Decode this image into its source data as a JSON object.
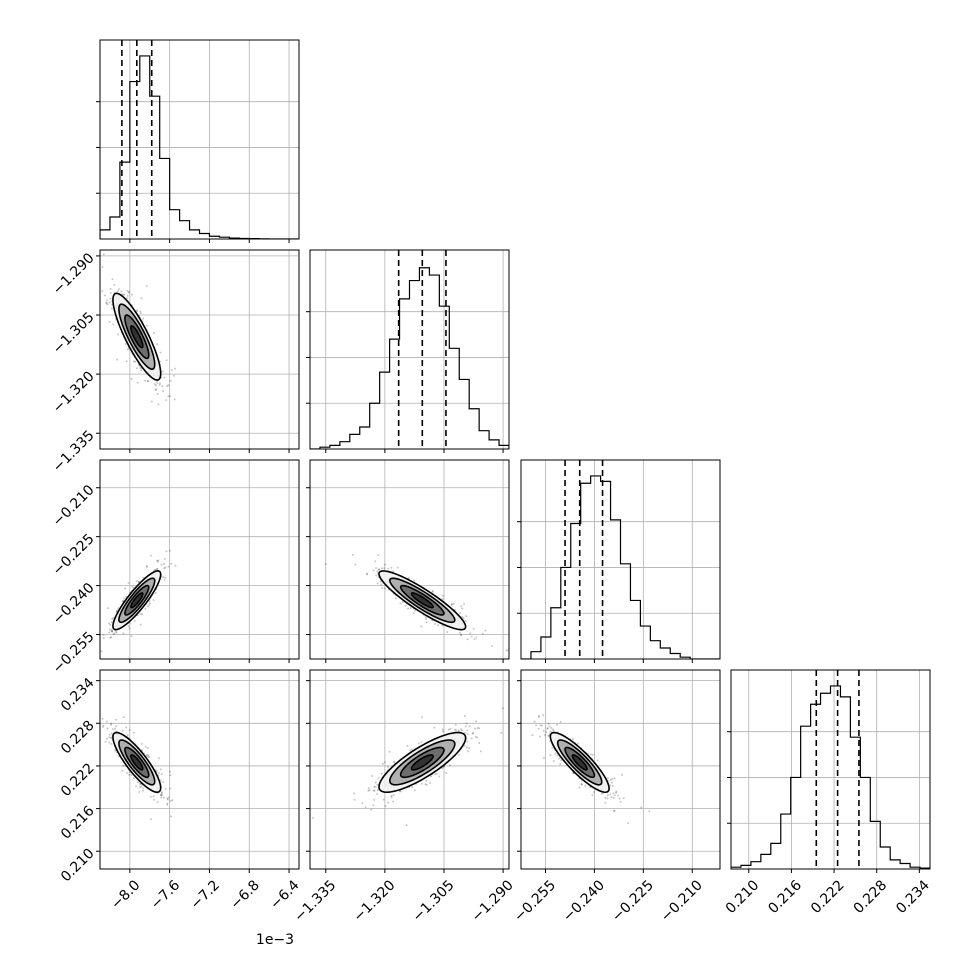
{
  "chart_data": {
    "type": "corner",
    "grid": true,
    "params": [
      {
        "range": [
          -8.3,
          -6.3
        ],
        "ticks": [
          -8.0,
          -7.6,
          -7.2,
          -6.8,
          -6.4
        ],
        "tick_labels": [
          "−8.0",
          "−7.6",
          "−7.2",
          "−6.8",
          "−6.4"
        ],
        "offset_label": "1e−3",
        "mean": -7.93,
        "sigma": 0.12,
        "quantiles": [
          -8.08,
          -7.93,
          -7.78
        ]
      },
      {
        "range": [
          -1.339,
          -1.2885
        ],
        "ticks": [
          -1.335,
          -1.32,
          -1.305,
          -1.29
        ],
        "tick_labels": [
          "−1.335",
          "−1.320",
          "−1.305",
          "−1.290"
        ],
        "offset_label": "",
        "mean": -1.3105,
        "sigma": 0.0055,
        "quantiles": [
          -1.3165,
          -1.3105,
          -1.3045
        ]
      },
      {
        "range": [
          -0.2625,
          -0.2015
        ],
        "ticks": [
          -0.255,
          -0.24,
          -0.225,
          -0.21
        ],
        "tick_labels": [
          "−0.255",
          "−0.240",
          "−0.225",
          "−0.210"
        ],
        "offset_label": "",
        "mean": -0.2445,
        "sigma": 0.0045,
        "quantiles": [
          -0.249,
          -0.2445,
          -0.2375
        ]
      },
      {
        "range": [
          0.2075,
          0.2355
        ],
        "ticks": [
          0.21,
          0.216,
          0.222,
          0.228,
          0.234
        ],
        "tick_labels": [
          "0.210",
          "0.216",
          "0.222",
          "0.228",
          "0.234"
        ],
        "offset_label": "",
        "mean": 0.2225,
        "sigma": 0.0021,
        "quantiles": [
          0.2195,
          0.2225,
          0.2255
        ]
      }
    ],
    "correlations": [
      {
        "pair": [
          0,
          1
        ],
        "rho": -0.85
      },
      {
        "pair": [
          0,
          2
        ],
        "rho": 0.88
      },
      {
        "pair": [
          0,
          3
        ],
        "rho": -0.85
      },
      {
        "pair": [
          1,
          2
        ],
        "rho": -0.9
      },
      {
        "pair": [
          1,
          3
        ],
        "rho": 0.82
      },
      {
        "pair": [
          2,
          3
        ],
        "rho": -0.87
      }
    ],
    "histograms": [
      [
        0.05,
        0.12,
        0.42,
        0.86,
        1.0,
        0.78,
        0.44,
        0.16,
        0.1,
        0.05,
        0.03,
        0.015,
        0.01,
        0.005,
        0.003,
        0.002,
        0.001,
        0,
        0,
        0
      ],
      [
        0,
        0.01,
        0.02,
        0.04,
        0.08,
        0.12,
        0.25,
        0.42,
        0.6,
        0.82,
        0.92,
        0.99,
        0.95,
        0.78,
        0.55,
        0.38,
        0.22,
        0.1,
        0.05,
        0.02
      ],
      [
        0,
        0.04,
        0.12,
        0.28,
        0.5,
        0.74,
        0.96,
        1.0,
        0.97,
        0.76,
        0.52,
        0.32,
        0.18,
        0.1,
        0.06,
        0.03,
        0.01,
        0,
        0,
        0
      ],
      [
        0.01,
        0.02,
        0.04,
        0.08,
        0.14,
        0.3,
        0.5,
        0.78,
        0.9,
        0.96,
        1.0,
        0.94,
        0.72,
        0.5,
        0.26,
        0.12,
        0.05,
        0.03,
        0.01,
        0.005
      ]
    ]
  }
}
